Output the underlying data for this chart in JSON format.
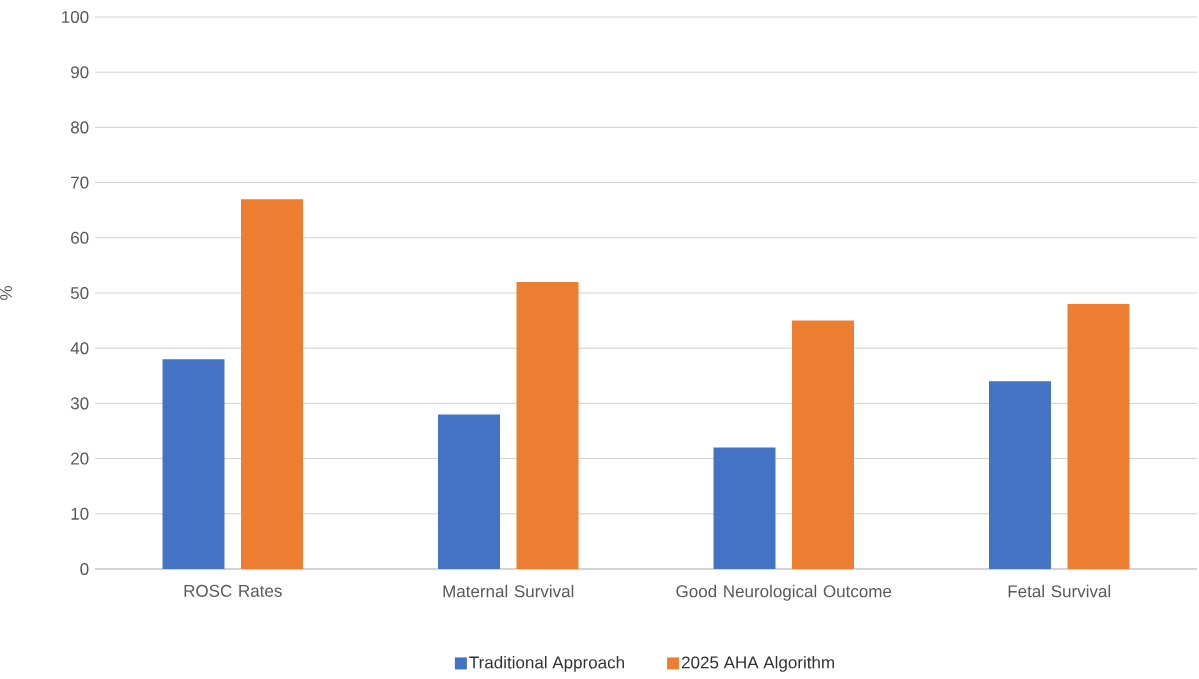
{
  "chart_data": {
    "type": "bar",
    "ylabel": "%",
    "categories": [
      "ROSC Rates",
      "Maternal Survival",
      "Good Neurological Outcome",
      "Fetal Survival"
    ],
    "series": [
      {
        "name": "Traditional Approach",
        "color": "#4472c4",
        "values": [
          38,
          28,
          22,
          34
        ]
      },
      {
        "name": "2025 AHA Algorithm",
        "color": "#ed7d31",
        "values": [
          67,
          52,
          45,
          48
        ]
      }
    ],
    "ylim": [
      0,
      100
    ],
    "yticks": [
      0,
      10,
      20,
      30,
      40,
      50,
      60,
      70,
      80,
      90,
      100
    ],
    "grid": "y",
    "legend": "bottom"
  }
}
